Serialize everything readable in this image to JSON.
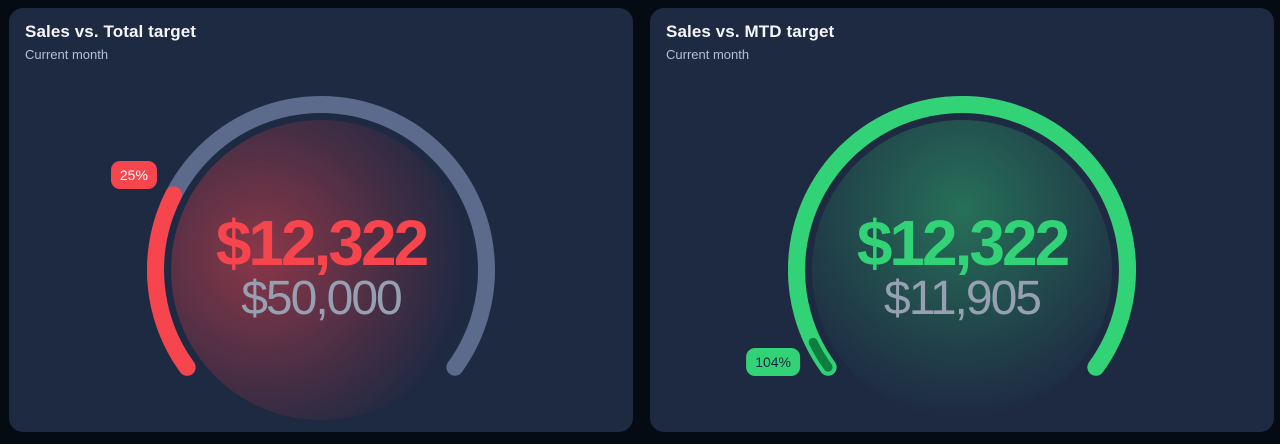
{
  "theme": {
    "page_bg": "#040b12",
    "card_bg": "#1e2942",
    "title_color": "#f4f6fa",
    "subtitle_color": "#b3bfd5",
    "target_color": "#96a0b2"
  },
  "chart_data": [
    {
      "type": "gauge",
      "title": "Sales vs. Total target",
      "subtitle": "Current month",
      "value": 12322,
      "value_label": "$12,322",
      "target": 50000,
      "target_label": "$50,000",
      "percent": 25,
      "percent_label": "25%",
      "scale": {
        "min": 0,
        "max": 50000
      },
      "arc": {
        "start_deg": 234,
        "span_deg": 252
      },
      "progress_color": "#f7454e",
      "track_color": "#5c6b8c",
      "value_color": "#f7454e",
      "badge_bg": "#f7454e",
      "badge_text_color": "#ffffff",
      "glow_gradient": "radial-gradient(circle at 30% 45%, rgba(247,69,78,0.50) 0%, rgba(247,69,78,0.16) 52%, rgba(247,69,78,0) 78%)"
    },
    {
      "type": "gauge",
      "title": "Sales vs. MTD target",
      "subtitle": "Current month",
      "value": 12322,
      "value_label": "$12,322",
      "target": 11905,
      "target_label": "$11,905",
      "percent": 104,
      "percent_label": "104%",
      "scale": {
        "min": 0,
        "max": 11905
      },
      "arc": {
        "start_deg": 234,
        "span_deg": 252
      },
      "progress_color": "#32d377",
      "overflow_color": "#0f7d40",
      "track_color": "#5c6b8c",
      "value_color": "#32d377",
      "badge_bg": "#32d377",
      "badge_text_color": "#15283b",
      "glow_gradient": "radial-gradient(circle at 50% 30%, rgba(50,211,119,0.42) 0%, rgba(50,211,119,0.13) 55%, rgba(50,211,119,0) 82%)"
    }
  ]
}
